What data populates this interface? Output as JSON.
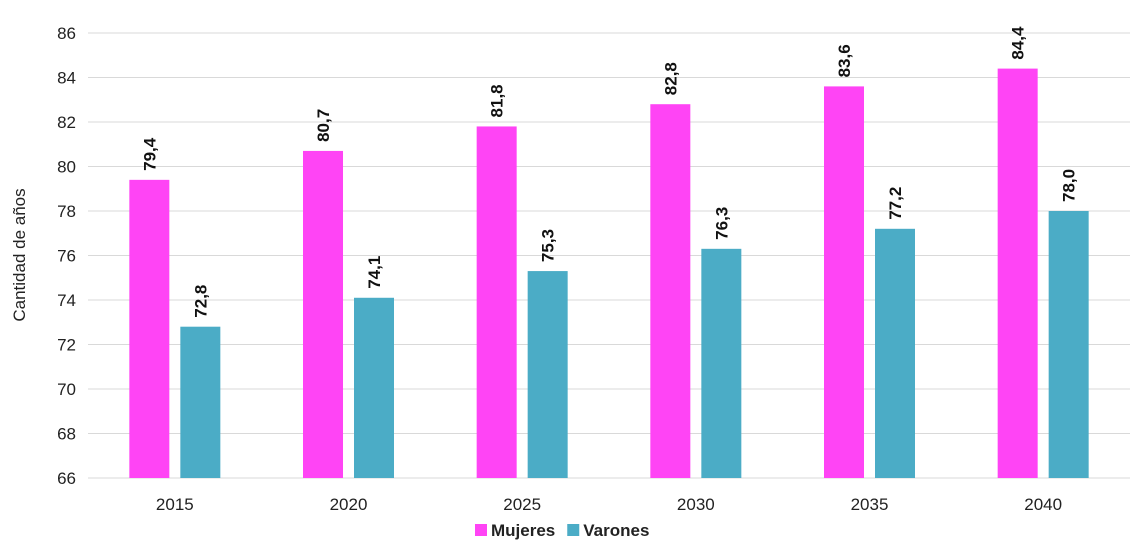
{
  "chart_data": {
    "type": "bar",
    "categories": [
      "2015",
      "2020",
      "2025",
      "2030",
      "2035",
      "2040"
    ],
    "series": [
      {
        "name": "Mujeres",
        "color": "#FF44F5",
        "values": [
          79.4,
          80.7,
          81.8,
          82.8,
          83.6,
          84.4
        ],
        "labels": [
          "79,4",
          "80,7",
          "81,8",
          "82,8",
          "83,6",
          "84,4"
        ]
      },
      {
        "name": "Varones",
        "color": "#4BACC6",
        "values": [
          72.8,
          74.1,
          75.3,
          76.3,
          77.2,
          78.0
        ],
        "labels": [
          "72,8",
          "74,1",
          "75,3",
          "76,3",
          "77,2",
          "78,0"
        ]
      }
    ],
    "ylabel": "Cantidad de años",
    "ylim": [
      66,
      86
    ],
    "yticks": [
      66,
      68,
      70,
      72,
      74,
      76,
      78,
      80,
      82,
      84,
      86
    ],
    "grid": true,
    "legend": "bottom"
  }
}
